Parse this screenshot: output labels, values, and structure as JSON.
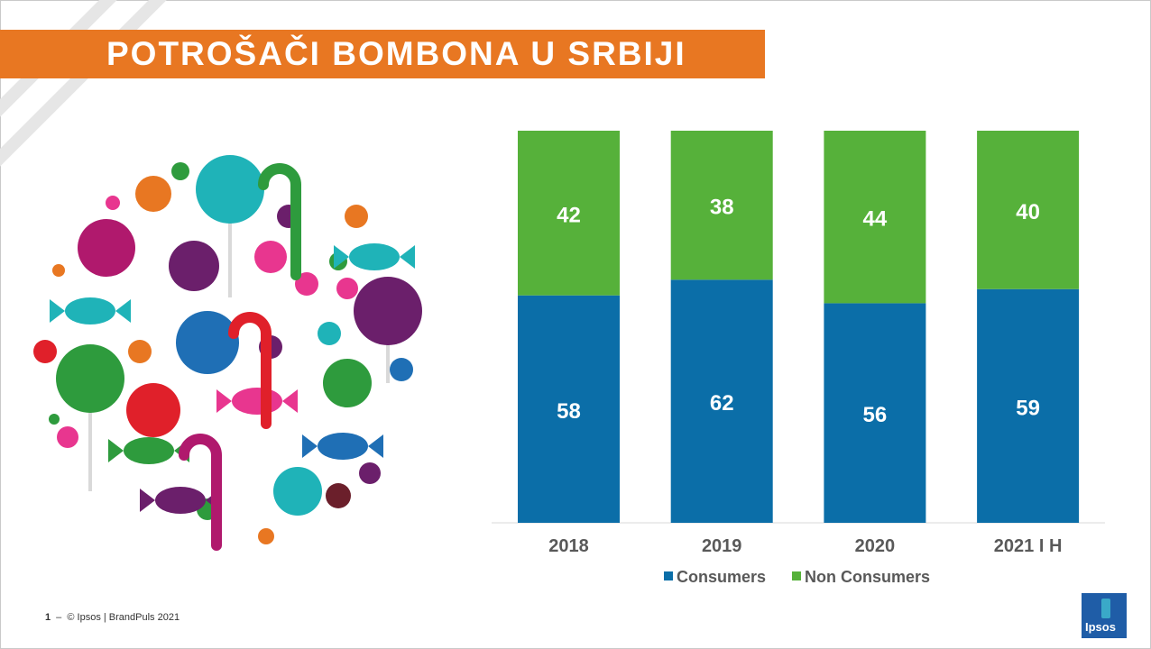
{
  "title": "POTROŠAČI BOMBONA U SRBIJI",
  "footer": {
    "page": "1",
    "separator": "–",
    "text": "© Ipsos | BrandPuls 2021"
  },
  "logo": {
    "text": "Ipsos"
  },
  "illustration": {
    "icon": "candy-illustration"
  },
  "colors": {
    "consumers": "#0b6ea8",
    "non_consumers": "#56b13a",
    "title_bar": "#e87722"
  },
  "chart_data": {
    "type": "bar",
    "stacked": true,
    "categories": [
      "2018",
      "2019",
      "2020",
      "2021 I H"
    ],
    "series": [
      {
        "name": "Consumers",
        "values": [
          58,
          62,
          56,
          59
        ]
      },
      {
        "name": "Non Consumers",
        "values": [
          42,
          38,
          44,
          40
        ]
      }
    ],
    "ylim": [
      0,
      100
    ],
    "grid": false,
    "legend": "bottom"
  }
}
